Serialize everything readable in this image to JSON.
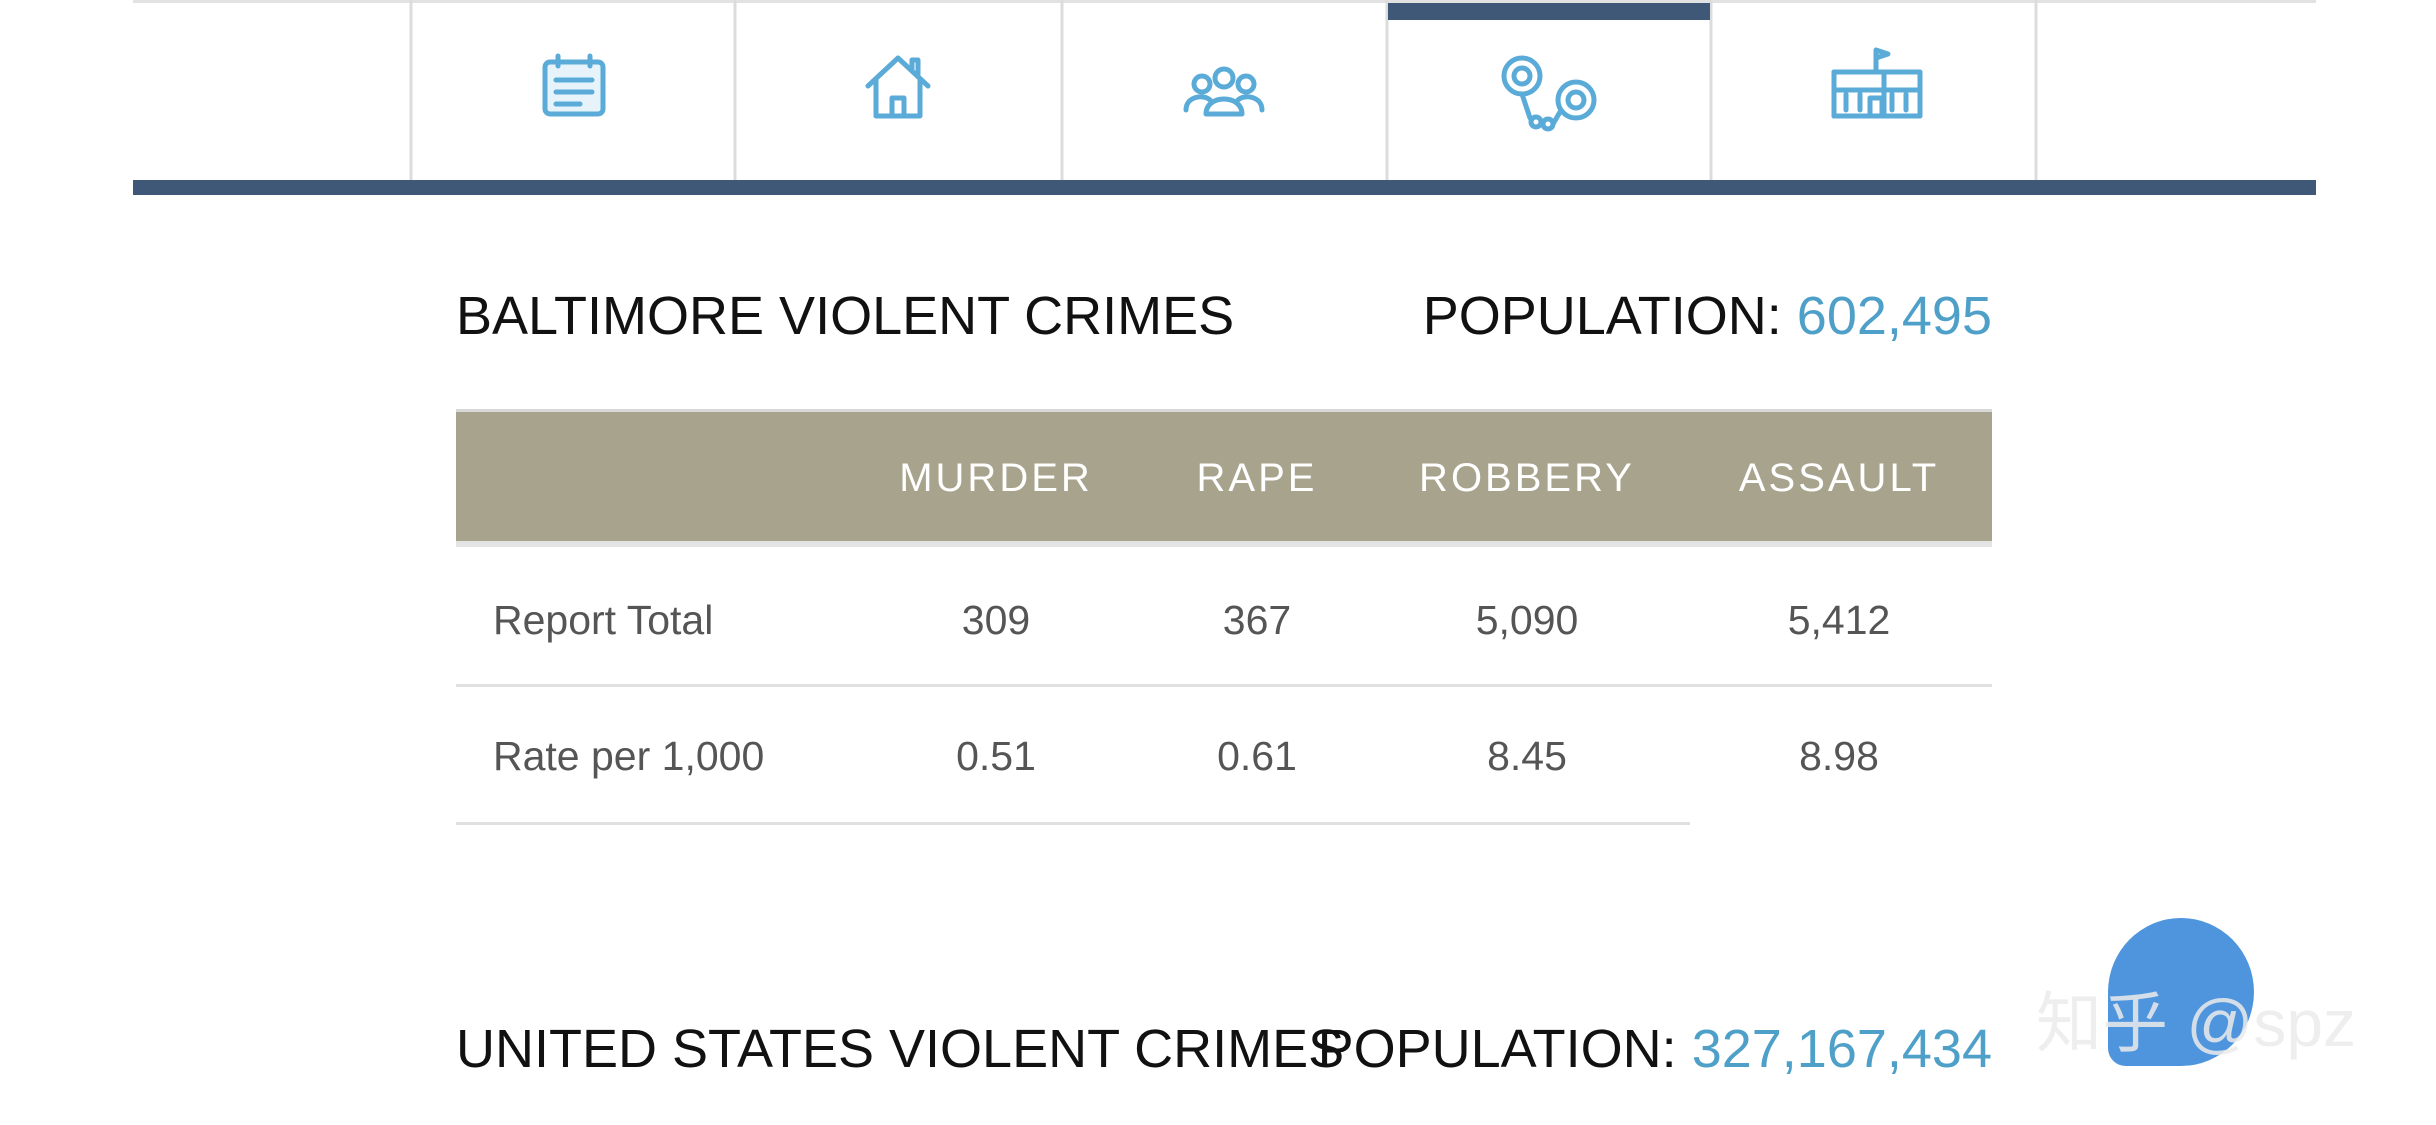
{
  "baltimore": {
    "title": "BALTIMORE VIOLENT CRIMES",
    "population_label": "POPULATION:",
    "population_value": "602,495",
    "table": {
      "header": [
        "MURDER",
        "RAPE",
        "ROBBERY",
        "ASSAULT"
      ],
      "rows": [
        [
          "Report Total",
          "309",
          "367",
          "5,090",
          "5,412"
        ],
        [
          "Rate per 1,000",
          "0.51",
          "0.61",
          "8.45",
          "8.98"
        ]
      ]
    }
  },
  "united_states": {
    "title": "UNITED STATES VIOLENT CRIMES",
    "population_label": "POPULATION:",
    "population_value": "327,167,434"
  },
  "watermark": {
    "text": "知乎 @spz"
  }
}
